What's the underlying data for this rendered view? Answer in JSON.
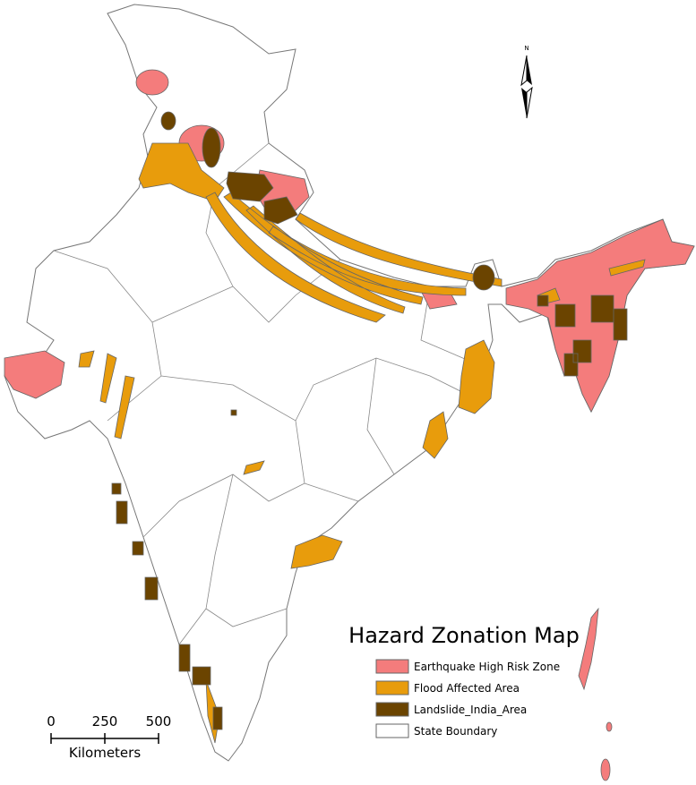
{
  "title": "Hazard Zonation Map",
  "legend": [
    {
      "label": "Earthquake High Risk Zone",
      "color": "#f47c7c"
    },
    {
      "label": "Flood Affected Area",
      "color": "#e89c0c"
    },
    {
      "label": "Landslide_India_Area",
      "color": "#6b4400"
    },
    {
      "label": "State Boundary",
      "color": "#ffffff"
    }
  ],
  "scale_bar": {
    "ticks": [
      0,
      250,
      500
    ],
    "unit": "Kilometers"
  },
  "north_arrow": "N"
}
